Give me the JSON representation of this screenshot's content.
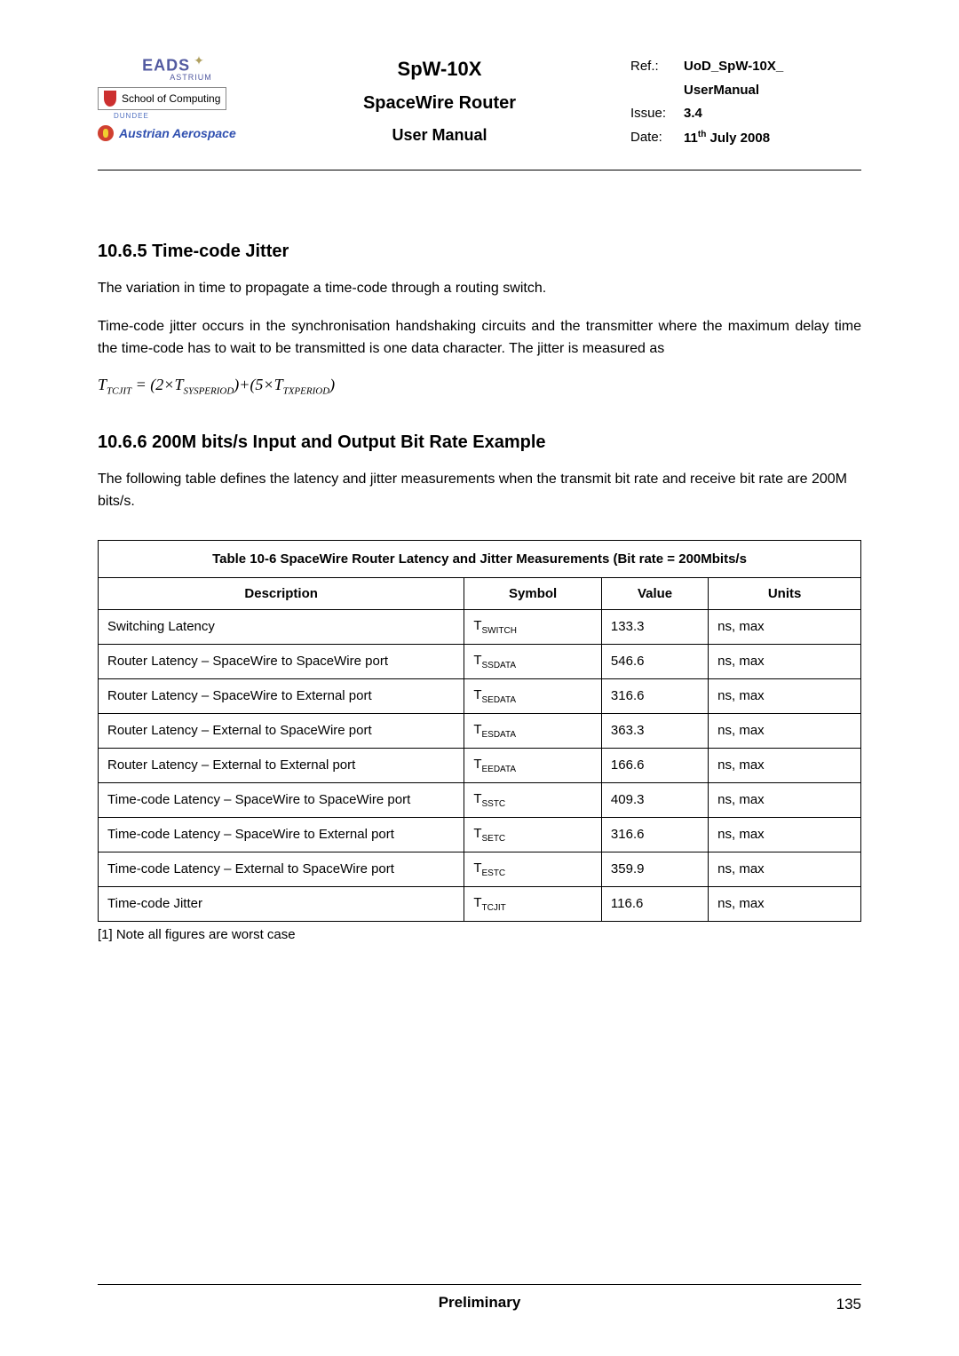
{
  "header": {
    "logos": {
      "eads": "EADS",
      "astrium": "ASTRIUM",
      "school": "School of Computing",
      "dundee": "DUNDEE",
      "austrian": "Austrian Aerospace"
    },
    "title1": "SpW-10X",
    "title2": "SpaceWire Router",
    "title3": "User Manual",
    "meta": {
      "ref_label": "Ref.:",
      "ref_value1": "UoD_SpW-10X_",
      "ref_value2": "UserManual",
      "issue_label": "Issue:",
      "issue_value": "3.4",
      "date_label": "Date:",
      "date_value_pre": "11",
      "date_value_sup": "th",
      "date_value_post": " July 2008"
    }
  },
  "sections": {
    "s1": {
      "heading": "10.6.5  Time-code Jitter",
      "p1": "The variation in time to propagate a time-code through a routing switch.",
      "p2": "Time-code jitter occurs in the synchronisation handshaking circuits and the transmitter where the maximum delay time the time-code has to wait to be transmitted is one data character. The jitter is measured as"
    },
    "formula": {
      "lhs_T": "T",
      "lhs_sub": "TCJIT",
      "eq": " = ",
      "open1": "(2×",
      "T1": "T",
      "sub1": "SYSPERIOD",
      "close1": ")",
      "plus": "+",
      "open2": "(5×",
      "T2": "T",
      "sub2": "TXPERIOD",
      "close2": ")"
    },
    "s2": {
      "heading": "10.6.6  200M bits/s Input and Output Bit Rate Example",
      "p1": "The following table defines the latency and jitter measurements when the transmit bit rate and receive bit rate are 200M bits/s."
    }
  },
  "table": {
    "title": "Table 10-6 SpaceWire Router Latency and Jitter Measurements (Bit rate = 200Mbits/s",
    "headers": {
      "desc": "Description",
      "symbol": "Symbol",
      "value": "Value",
      "units": "Units"
    },
    "rows": [
      {
        "desc": "Switching Latency",
        "sym_pre": "T",
        "sym_sub": "SWITCH",
        "value": "133.3",
        "units": "ns, max"
      },
      {
        "desc": "Router Latency – SpaceWire to SpaceWire port",
        "sym_pre": "T",
        "sym_sub": "SSDATA",
        "value": "546.6",
        "units": "ns, max"
      },
      {
        "desc": "Router Latency – SpaceWire to External port",
        "sym_pre": "T",
        "sym_sub": "SEDATA",
        "value": "316.6",
        "units": "ns, max"
      },
      {
        "desc": "Router Latency – External to SpaceWire port",
        "sym_pre": "T",
        "sym_sub": "ESDATA",
        "value": "363.3",
        "units": "ns, max"
      },
      {
        "desc": "Router Latency – External to External port",
        "sym_pre": "T",
        "sym_sub": "EEDATA",
        "value": "166.6",
        "units": "ns, max"
      },
      {
        "desc": "Time-code Latency – SpaceWire to SpaceWire port",
        "sym_pre": "T",
        "sym_sub": "SSTC",
        "value": "409.3",
        "units": "ns, max"
      },
      {
        "desc": "Time-code Latency – SpaceWire to External port",
        "sym_pre": "T",
        "sym_sub": "SETC",
        "value": "316.6",
        "units": "ns, max"
      },
      {
        "desc": "Time-code Latency – External to SpaceWire port",
        "sym_pre": "T",
        "sym_sub": "ESTC",
        "value": "359.9",
        "units": "ns, max"
      },
      {
        "desc": "Time-code Jitter",
        "sym_pre": "T",
        "sym_sub": "TCJIT",
        "value": "116.6",
        "units": "ns, max"
      }
    ],
    "note": "[1] Note all figures are worst case"
  },
  "footer": {
    "text": "Preliminary",
    "page": "135"
  }
}
